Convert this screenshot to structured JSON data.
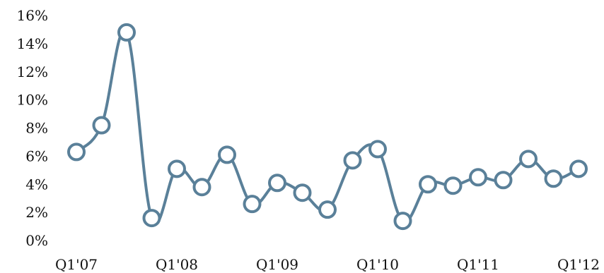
{
  "chart_data": {
    "type": "line",
    "title": "",
    "xlabel": "",
    "ylabel": "",
    "ylim": [
      0,
      16
    ],
    "y_ticks": [
      "0%",
      "2%",
      "4%",
      "6%",
      "8%",
      "10%",
      "12%",
      "14%",
      "16%"
    ],
    "x_tick_labels": [
      "Q1'07",
      "Q1'08",
      "Q1'09",
      "Q1'10",
      "Q1'11",
      "Q1'12"
    ],
    "x": [
      "Q1'07",
      "Q2'07",
      "Q3'07",
      "Q4'07",
      "Q1'08",
      "Q2'08",
      "Q3'08",
      "Q4'08",
      "Q1'09",
      "Q2'09",
      "Q3'09",
      "Q4'09",
      "Q1'10",
      "Q2'10",
      "Q3'10",
      "Q4'10",
      "Q1'11",
      "Q2'11",
      "Q3'11",
      "Q4'11",
      "Q1'12"
    ],
    "series": [
      {
        "values": [
          6.3,
          8.2,
          14.8,
          1.6,
          5.1,
          3.8,
          6.1,
          2.6,
          4.1,
          3.4,
          2.2,
          5.7,
          6.5,
          1.4,
          4.0,
          3.9,
          4.5,
          4.3,
          5.8,
          4.4,
          5.1
        ]
      }
    ],
    "line_color": "#5a8099",
    "marker_fill": "#ffffff",
    "grid": false,
    "legend": "none"
  }
}
